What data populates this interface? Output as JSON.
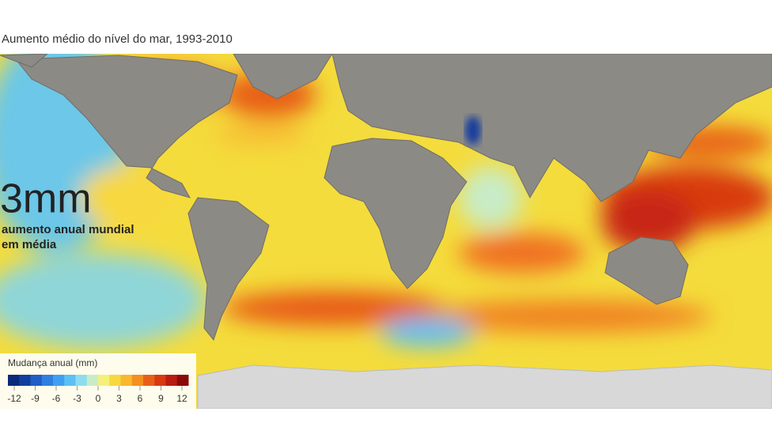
{
  "header": {
    "title": "Aumento médio do nível do mar, 1993-2010"
  },
  "highlight": {
    "value": "3mm",
    "caption_lines": [
      "aumento anual mundial",
      "em média"
    ]
  },
  "legend": {
    "title": "Mudança anual (mm)",
    "ticks": [
      -12,
      -9,
      -6,
      -3,
      0,
      3,
      6,
      9,
      12
    ],
    "colors": [
      "#0a2a7a",
      "#123e9e",
      "#1f5cc4",
      "#2f7fe0",
      "#3fa0f0",
      "#5cc0f5",
      "#8fdcf0",
      "#c8ecc8",
      "#f5f07a",
      "#f8d840",
      "#f8b830",
      "#f39020",
      "#e86018",
      "#d83a10",
      "#b81c10",
      "#8a0a0a"
    ]
  }
}
